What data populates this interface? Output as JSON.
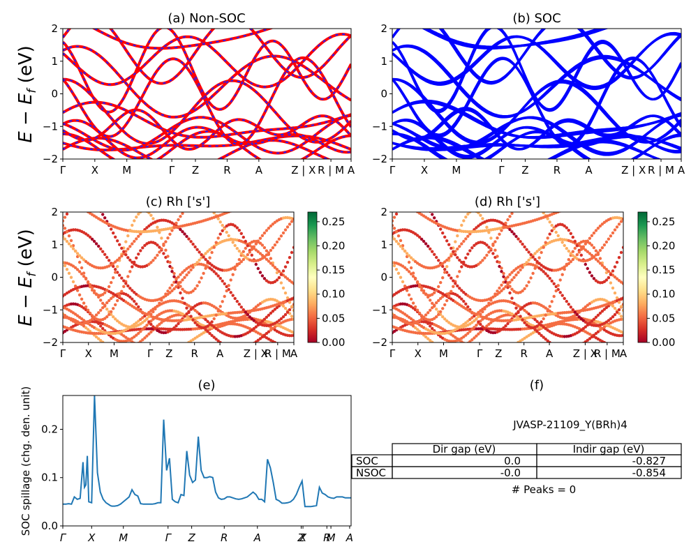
{
  "band_kpath": [
    "Γ",
    "X",
    "M",
    "Γ",
    "Z",
    "R",
    "A",
    "Z | X",
    "R | M",
    "A"
  ],
  "spillage_kpath": [
    "Γ",
    "X",
    "M",
    "Γ",
    "Z",
    "R",
    "A",
    "Z",
    "X",
    "R",
    "M",
    "A"
  ],
  "band_ylabel": "E − E",
  "band_ylabel_sub": "f",
  "band_ylabel_unit": " (eV)",
  "colors": {
    "nonsoc_solid": "#ff0000",
    "nonsoc_dash": "#2020ff",
    "soc": "#0000ff",
    "spillage_line": "#1f77b4",
    "cmap": [
      "#a50026",
      "#d73027",
      "#f46d43",
      "#fdae61",
      "#fee08b",
      "#ffffbf",
      "#d9ef8b",
      "#a6d96a",
      "#66bd63",
      "#1a9850",
      "#006837"
    ]
  },
  "chart_data": [
    {
      "panel": "a",
      "type": "line",
      "title": "(a) Non-SOC",
      "xticks": [
        "Γ",
        "X",
        "M",
        "Γ",
        "Z",
        "R",
        "A",
        "Z | X",
        "R | M",
        "A"
      ],
      "yticks": [
        "−2",
        "−1",
        "0",
        "1",
        "2"
      ],
      "ylim": [
        -2,
        2
      ],
      "style": "red solid with blue dashed overlay",
      "series_note": "electronic band structure (many bands)"
    },
    {
      "panel": "b",
      "type": "line",
      "title": "(b) SOC",
      "xticks": [
        "Γ",
        "X",
        "M",
        "Γ",
        "Z",
        "R",
        "A",
        "Z | X",
        "R | M",
        "A"
      ],
      "yticks": [
        "−2",
        "−1",
        "0",
        "1",
        "2"
      ],
      "ylim": [
        -2,
        2
      ]
    },
    {
      "panel": "c",
      "type": "scatter",
      "title": "(c)  Rh ['s']",
      "xticks": [
        "Γ",
        "X",
        "M",
        "Γ",
        "Z",
        "R",
        "A",
        "Z | X",
        "R | M",
        "A"
      ],
      "yticks": [
        "−2",
        "−1",
        "0",
        "1",
        "2"
      ],
      "ylim": [
        -2,
        2
      ],
      "colorbar_ticks": [
        "0.00",
        "0.05",
        "0.10",
        "0.15",
        "0.20",
        "0.25"
      ],
      "colorbar_range": [
        0,
        0.27
      ]
    },
    {
      "panel": "d",
      "type": "scatter",
      "title": "(d) Rh ['s']",
      "xticks": [
        "Γ",
        "X",
        "M",
        "Γ",
        "Z",
        "R",
        "A",
        "Z | X",
        "R | M",
        "A"
      ],
      "yticks": [
        "−2",
        "−1",
        "0",
        "1",
        "2"
      ],
      "ylim": [
        -2,
        2
      ],
      "colorbar_ticks": [
        "0.00",
        "0.05",
        "0.10",
        "0.15",
        "0.20",
        "0.25"
      ],
      "colorbar_range": [
        0,
        0.27
      ]
    },
    {
      "panel": "e",
      "type": "line",
      "title": "(e)",
      "ylabel": "SOC spillage (chg. den. unit)",
      "ylim": [
        0,
        0.27
      ],
      "yticks": [
        "0.0",
        "0.1",
        "0.2"
      ],
      "xticks": [
        "Γ",
        "X",
        "M",
        "Γ",
        "Z",
        "R",
        "A",
        "Z",
        "X",
        "R",
        "M",
        "A"
      ],
      "x": [
        0,
        2,
        4,
        6,
        8,
        10,
        12,
        14,
        15,
        16,
        17,
        18,
        20,
        22,
        24,
        26,
        28,
        30,
        32,
        33,
        34,
        35,
        36,
        38,
        40,
        42,
        44,
        46,
        48,
        50,
        52,
        54,
        56,
        58,
        60,
        62,
        64,
        66,
        68,
        70,
        72,
        74,
        76,
        78,
        80,
        82,
        84,
        86,
        88,
        90,
        92,
        94,
        96,
        98,
        100,
        102,
        104,
        106,
        108,
        110,
        112,
        114,
        116,
        118,
        120,
        122,
        124,
        126,
        128,
        130,
        132,
        134,
        136,
        138,
        140,
        142,
        144,
        146,
        148,
        150,
        152,
        154,
        156,
        158,
        160,
        162,
        164,
        166,
        168,
        170,
        172,
        174,
        176,
        178,
        180,
        182,
        184,
        186,
        188,
        190,
        192,
        194,
        196,
        198,
        200
      ],
      "y": [
        0.045,
        0.045,
        0.046,
        0.045,
        0.06,
        0.055,
        0.057,
        0.132,
        0.08,
        0.085,
        0.145,
        0.05,
        0.048,
        0.27,
        0.11,
        0.07,
        0.055,
        0.048,
        0.044,
        0.042,
        0.041,
        0.041,
        0.041,
        0.042,
        0.045,
        0.05,
        0.055,
        0.06,
        0.075,
        0.065,
        0.062,
        0.046,
        0.045,
        0.045,
        0.045,
        0.045,
        0.046,
        0.048,
        0.048,
        0.22,
        0.115,
        0.14,
        0.055,
        0.05,
        0.048,
        0.065,
        0.063,
        0.155,
        0.105,
        0.09,
        0.095,
        0.185,
        0.115,
        0.1,
        0.1,
        0.102,
        0.1,
        0.07,
        0.058,
        0.055,
        0.056,
        0.06,
        0.06,
        0.058,
        0.056,
        0.055,
        0.056,
        0.058,
        0.06,
        0.065,
        0.07,
        0.065,
        0.055,
        0.055,
        0.05,
        0.138,
        0.12,
        0.09,
        0.055,
        0.052,
        0.047,
        0.047,
        0.048,
        0.05,
        0.055,
        0.065,
        0.08,
        0.093,
        0.04,
        0.04,
        0.04,
        0.041,
        0.042,
        0.08,
        0.068,
        0.065,
        0.06,
        0.058,
        0.057,
        0.06,
        0.06,
        0.06,
        0.058,
        0.058,
        0.058
      ]
    },
    {
      "panel": "f",
      "type": "table",
      "title": "(f)",
      "subtitle": "JVASP-21109_Y(BRh)4",
      "columns": [
        "Dir gap (eV)",
        "Indir gap (eV)"
      ],
      "rows": [
        {
          "label": "SOC",
          "values": [
            "0.0",
            "-0.827"
          ]
        },
        {
          "label": "NSOC",
          "values": [
            "-0.0",
            "-0.854"
          ]
        }
      ],
      "footer": "# Peaks = 0"
    }
  ]
}
